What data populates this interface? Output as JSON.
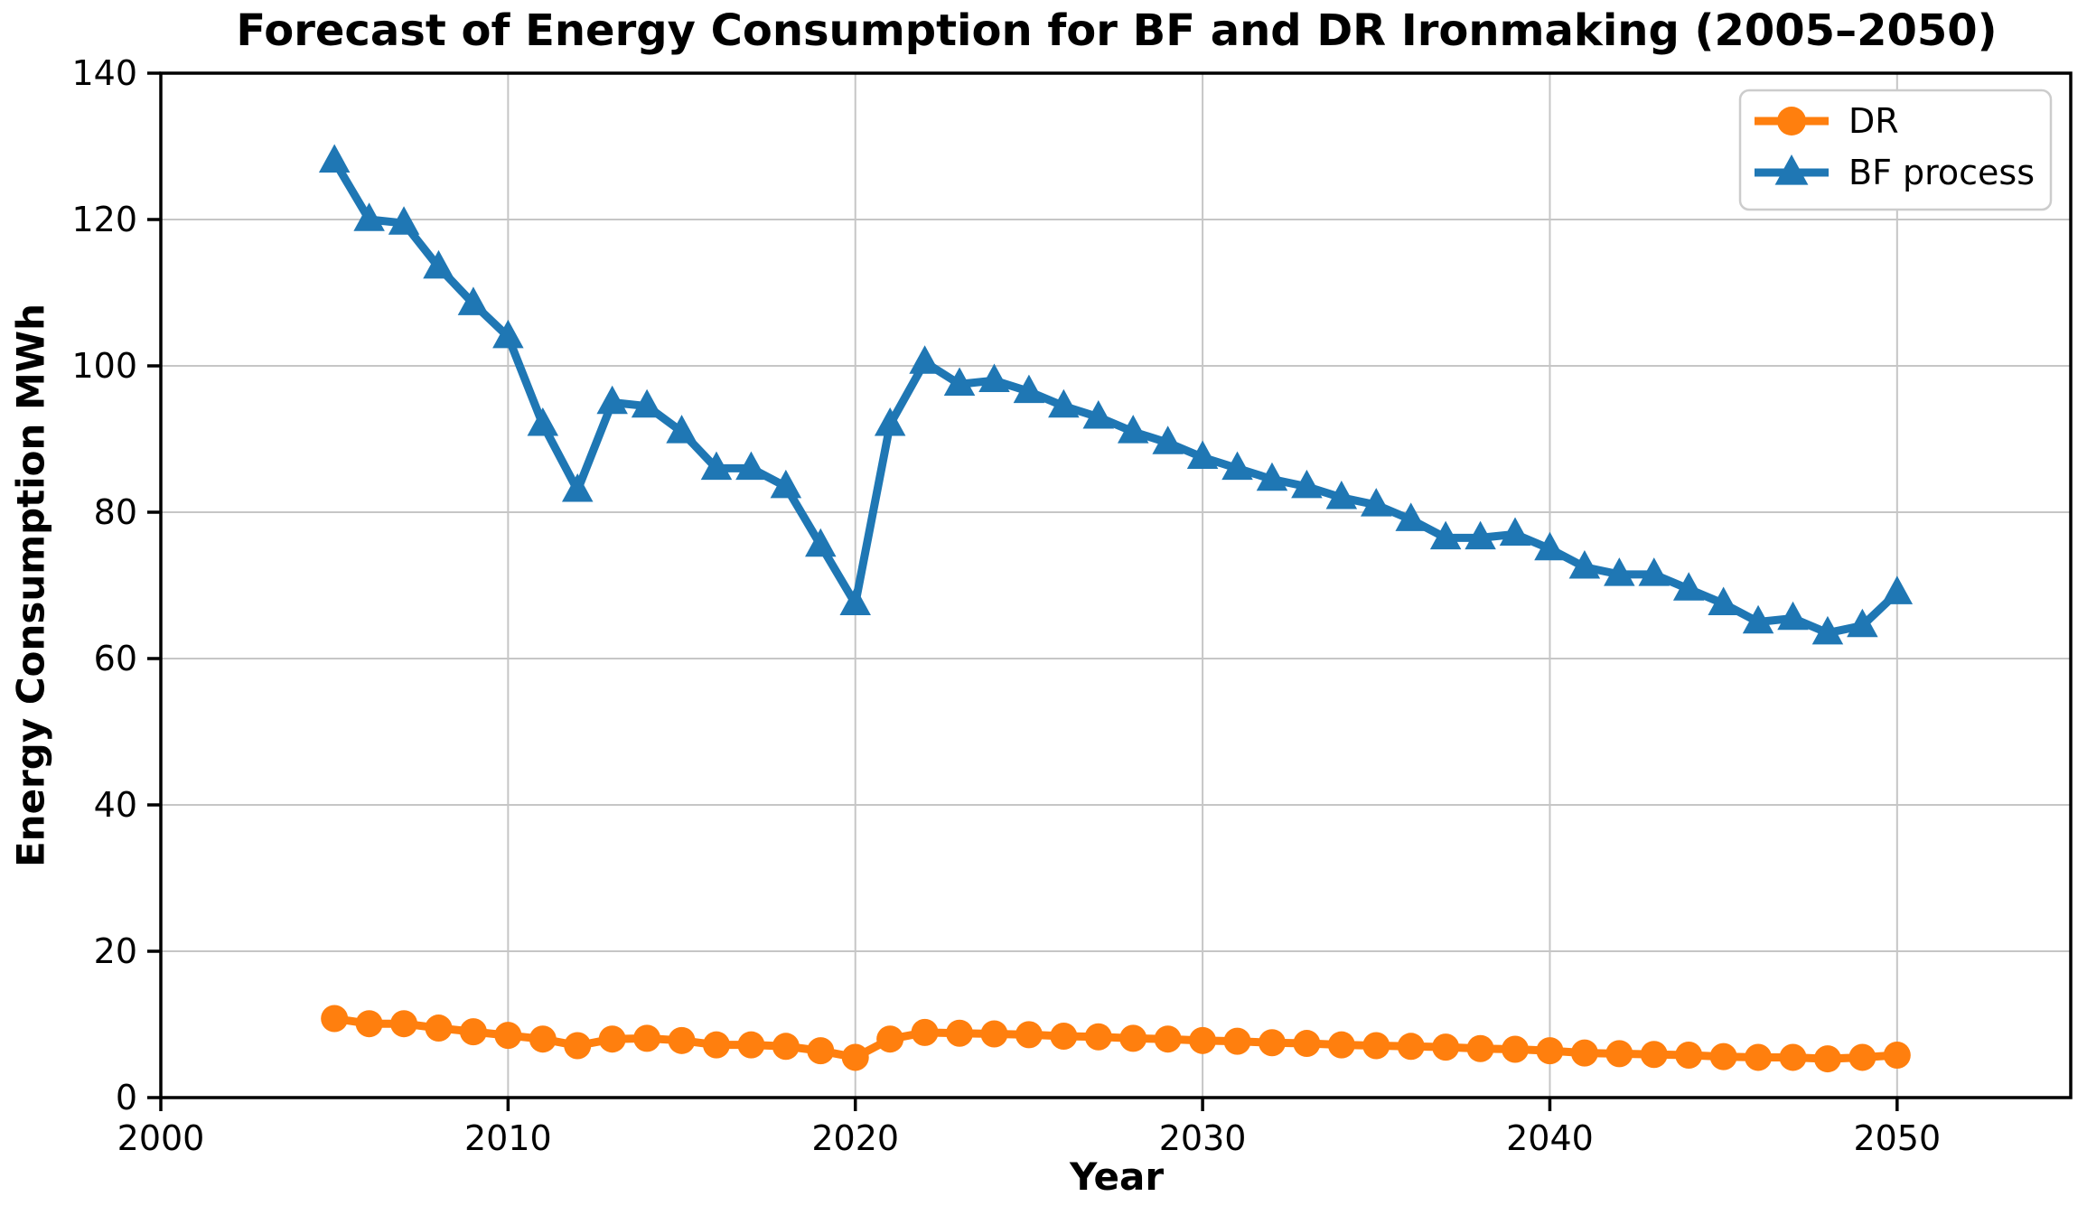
{
  "figure": {
    "background": "#ffffff"
  },
  "chart_data": {
    "type": "line",
    "title": "Forecast of Energy Consumption for BF and DR Ironmaking (2005–2050)",
    "xlabel": "Year",
    "ylabel": "Energy Consumption MWh",
    "xlim": [
      2000,
      2055
    ],
    "ylim": [
      0,
      140
    ],
    "xticks": [
      2000,
      2010,
      2020,
      2030,
      2040,
      2050
    ],
    "yticks": [
      0,
      20,
      40,
      60,
      80,
      100,
      120,
      140
    ],
    "grid": true,
    "grid_color": "#c6c6c6",
    "spine_color": "#000000",
    "legend": {
      "position": "upper right",
      "border_color": "#cccccc",
      "background": "#ffffff"
    },
    "x": [
      2005,
      2006,
      2007,
      2008,
      2009,
      2010,
      2011,
      2012,
      2013,
      2014,
      2015,
      2016,
      2017,
      2018,
      2019,
      2020,
      2021,
      2022,
      2023,
      2024,
      2025,
      2026,
      2027,
      2028,
      2029,
      2030,
      2031,
      2032,
      2033,
      2034,
      2035,
      2036,
      2037,
      2038,
      2039,
      2040,
      2041,
      2042,
      2043,
      2044,
      2045,
      2046,
      2047,
      2048,
      2049,
      2050
    ],
    "series": [
      {
        "name": "DR",
        "color": "#ff7f0e",
        "marker": "circle",
        "values": [
          10.8,
          10.1,
          10.1,
          9.5,
          9.0,
          8.5,
          8.0,
          7.1,
          8.0,
          8.1,
          7.8,
          7.2,
          7.2,
          7.0,
          6.4,
          5.5,
          8.0,
          8.9,
          8.8,
          8.7,
          8.6,
          8.4,
          8.3,
          8.1,
          8.0,
          7.8,
          7.7,
          7.5,
          7.4,
          7.2,
          7.1,
          7.0,
          6.9,
          6.7,
          6.6,
          6.4,
          6.1,
          6.0,
          5.9,
          5.8,
          5.6,
          5.5,
          5.5,
          5.3,
          5.5,
          5.8
        ]
      },
      {
        "name": "BF process",
        "color": "#1f77b4",
        "marker": "triangle",
        "values": [
          128,
          120,
          119.5,
          113.5,
          108.5,
          104,
          92,
          83,
          95,
          94.5,
          91,
          86,
          86,
          83.5,
          75.5,
          67.5,
          92,
          100.5,
          97.5,
          98,
          96.5,
          94.5,
          93,
          91,
          89.5,
          87.5,
          86,
          84.5,
          83.5,
          82,
          81,
          79,
          76.5,
          76.5,
          77,
          75,
          72.5,
          71.5,
          71.5,
          69.5,
          67.5,
          65,
          65.5,
          63.5,
          64.5,
          69
        ]
      }
    ]
  }
}
